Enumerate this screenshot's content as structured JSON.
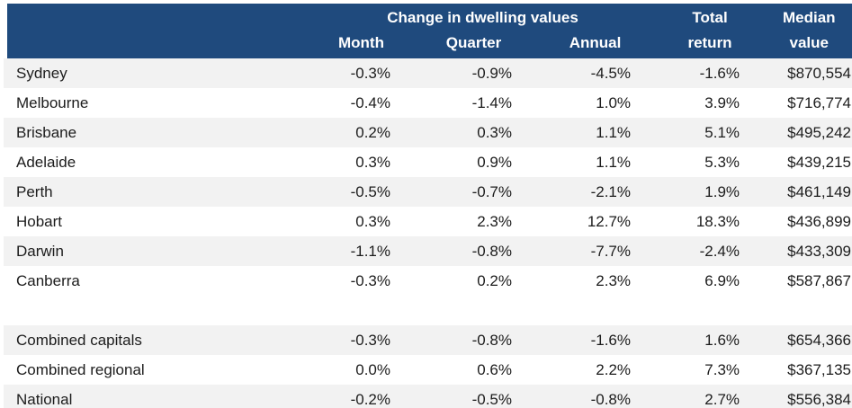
{
  "chart_data": {
    "type": "table",
    "header": {
      "group_label": "Change in dwelling values",
      "sub_columns": [
        "Month",
        "Quarter",
        "Annual"
      ],
      "total_column": [
        "Total",
        "return"
      ],
      "median_column": [
        "Median",
        "value"
      ]
    },
    "rows": [
      [
        "Sydney",
        "-0.3%",
        "-0.9%",
        "-4.5%",
        "-1.6%",
        "$870,554"
      ],
      [
        "Melbourne",
        "-0.4%",
        "-1.4%",
        "1.0%",
        "3.9%",
        "$716,774"
      ],
      [
        "Brisbane",
        "0.2%",
        "0.3%",
        "1.1%",
        "5.1%",
        "$495,242"
      ],
      [
        "Adelaide",
        "0.3%",
        "0.9%",
        "1.1%",
        "5.3%",
        "$439,215"
      ],
      [
        "Perth",
        "-0.5%",
        "-0.7%",
        "-2.1%",
        "1.9%",
        "$461,149"
      ],
      [
        "Hobart",
        "0.3%",
        "2.3%",
        "12.7%",
        "18.3%",
        "$436,899"
      ],
      [
        "Darwin",
        "-1.1%",
        "-0.8%",
        "-7.7%",
        "-2.4%",
        "$433,309"
      ],
      [
        "Canberra",
        "-0.3%",
        "0.2%",
        "2.3%",
        "6.9%",
        "$587,867"
      ]
    ],
    "summary_rows": [
      [
        "Combined capitals",
        "-0.3%",
        "-0.8%",
        "-1.6%",
        "1.6%",
        "$654,366"
      ],
      [
        "Combined regional",
        "0.0%",
        "0.6%",
        "2.2%",
        "7.3%",
        "$367,135"
      ],
      [
        "National",
        "-0.2%",
        "-0.5%",
        "-0.8%",
        "2.7%",
        "$556,384"
      ]
    ],
    "layout": {
      "striping": "alternate rows light grey, spacer row before summary rows",
      "value_alignment": "right",
      "header_alignment": "center"
    },
    "colors": {
      "header_bg": "#1f4a7d",
      "header_text": "#ffffff",
      "stripe_bg": "#f2f2f2",
      "body_text": "#1c1c1c",
      "page_bg": "#ffffff"
    }
  }
}
